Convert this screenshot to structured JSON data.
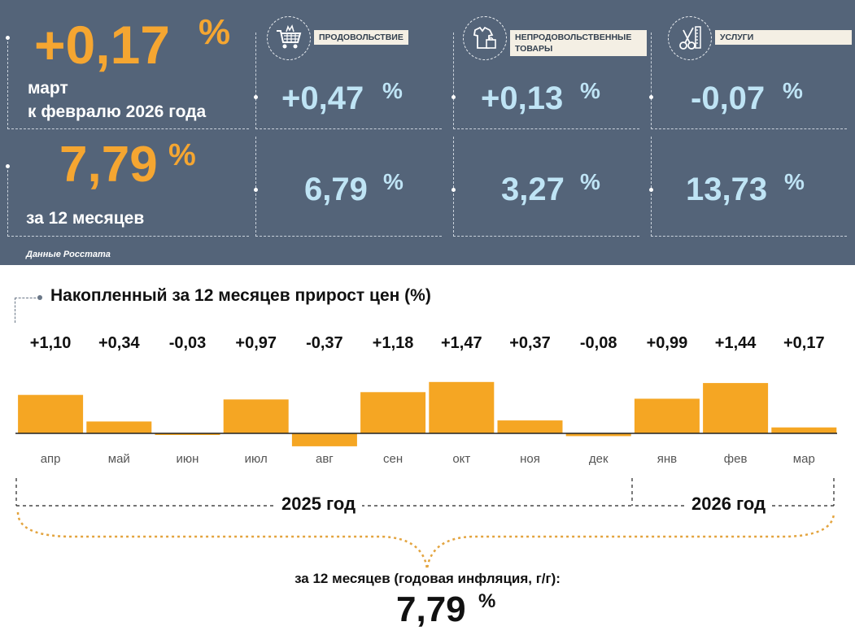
{
  "monthly": {
    "value": "+0,17",
    "pct": "%",
    "caption_line1": "март",
    "caption_line2": "к февралю 2026 года"
  },
  "annual": {
    "value": "7,79",
    "pct": "%",
    "caption": "за 12 месяцев"
  },
  "categories": [
    {
      "name": "ПРОДОВОЛЬСТВИЕ",
      "icon": "shopping-basket-icon",
      "monthly": "+0,47",
      "annual": "6,79"
    },
    {
      "name": "НЕПРОДОВОЛЬСТВЕННЫЕ ТОВАРЫ",
      "icon": "shirt-and-bag-icon",
      "monthly": "+0,13",
      "annual": "3,27"
    },
    {
      "name": "УСЛУГИ",
      "icon": "scissors-and-comb-icon",
      "monthly": "-0,07",
      "annual": "13,73"
    }
  ],
  "pct_sign": "%",
  "source": "Данные Росстата",
  "colors": {
    "panel_bg": "#546479",
    "accent_orange": "#f5a631",
    "light_blue": "#bfe4f5",
    "bar": "#f5a623"
  },
  "chart_data": {
    "type": "bar",
    "title": "Накопленный за 12 месяцев прирост цен (%)",
    "categories": [
      "апр",
      "май",
      "июн",
      "июл",
      "авг",
      "сен",
      "окт",
      "ноя",
      "дек",
      "янв",
      "фев",
      "мар"
    ],
    "values": [
      1.1,
      0.34,
      -0.03,
      0.97,
      -0.37,
      1.18,
      1.47,
      0.37,
      -0.08,
      0.99,
      1.44,
      0.17
    ],
    "value_labels": [
      "+1,10",
      "+0,34",
      "-0,03",
      "+0,97",
      "-0,37",
      "+1,18",
      "+1,47",
      "+0,37",
      "-0,08",
      "+0,99",
      "+1,44",
      "+0,17"
    ],
    "groups": [
      {
        "label": "2025 год",
        "from": 0,
        "to": 8
      },
      {
        "label": "2026 год",
        "from": 9,
        "to": 11
      }
    ],
    "grid": false,
    "summary_label": "за 12 месяцев (годовая инфляция, г/г):",
    "summary_value": "7,79",
    "summary_unit": "%"
  }
}
